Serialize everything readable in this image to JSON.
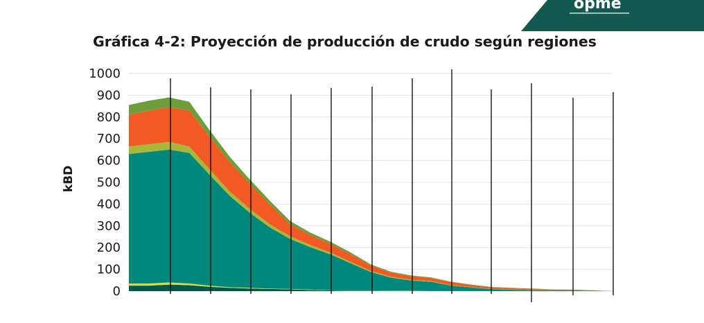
{
  "logo": {
    "text": "opme"
  },
  "chart_data": {
    "type": "area",
    "stacked": true,
    "title": "Gráfica 4-2: Proyección de producción de crudo según regiones",
    "xlabel": "",
    "ylabel": "kBD",
    "ylim": [
      0,
      1000
    ],
    "yticks": [
      0,
      100,
      200,
      300,
      400,
      500,
      600,
      700,
      800,
      900,
      1000
    ],
    "grid": true,
    "legend": "none",
    "x": [
      0,
      1,
      2,
      3,
      4,
      5,
      6,
      7,
      8,
      9,
      10,
      11,
      12,
      13,
      14,
      15,
      16,
      17,
      18,
      19,
      20,
      21,
      22,
      23,
      24
    ],
    "series": [
      {
        "color": "#00584a",
        "values": [
          25,
          25,
          30,
          27,
          20,
          15,
          12,
          10,
          8,
          5,
          3,
          2,
          2,
          1,
          1,
          1,
          1,
          0,
          0,
          0,
          0,
          0,
          0,
          0,
          0
        ]
      },
      {
        "color": "#d8d84a",
        "values": [
          10,
          10,
          10,
          8,
          5,
          3,
          3,
          2,
          2,
          2,
          1,
          1,
          1,
          1,
          1,
          0,
          0,
          0,
          0,
          0,
          0,
          0,
          0,
          0,
          0
        ]
      },
      {
        "color": "#00897b",
        "values": [
          595,
          605,
          610,
          600,
          510,
          420,
          345,
          280,
          230,
          195,
          165,
          125,
          85,
          60,
          47,
          42,
          24,
          17,
          9,
          6,
          4,
          3,
          3,
          2,
          0
        ]
      },
      {
        "color": "#a8b83a",
        "values": [
          35,
          35,
          35,
          30,
          25,
          20,
          18,
          15,
          12,
          10,
          8,
          7,
          5,
          4,
          3,
          3,
          2,
          2,
          1,
          1,
          1,
          1,
          1,
          0,
          0
        ]
      },
      {
        "color": "#f15a22",
        "values": [
          145,
          155,
          160,
          165,
          150,
          135,
          115,
          90,
          55,
          45,
          40,
          35,
          25,
          19,
          17,
          14,
          14,
          9,
          7,
          6,
          5,
          3,
          2,
          1,
          0
        ]
      },
      {
        "color": "#6e9e3c",
        "values": [
          45,
          45,
          45,
          40,
          30,
          25,
          20,
          18,
          15,
          12,
          10,
          8,
          5,
          4,
          3,
          3,
          2,
          2,
          2,
          2,
          2,
          1,
          1,
          1,
          0
        ]
      }
    ]
  }
}
